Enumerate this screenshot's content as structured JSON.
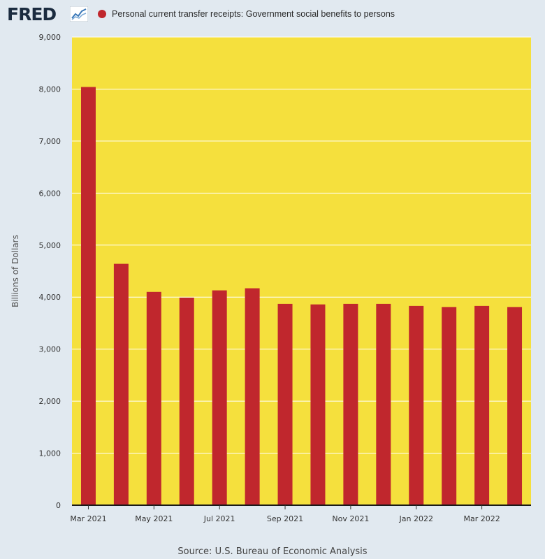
{
  "header": {
    "logo_text": "FRED",
    "logo_icon": "line-chart-icon",
    "legend_label": "Personal current transfer receipts: Government social benefits to persons"
  },
  "colors": {
    "plot_background": "#f5e03d",
    "bar": "#c0272d",
    "page_background": "#e1e9f0",
    "grid": "#ffffff"
  },
  "chart_data": {
    "type": "bar",
    "title": "Personal current transfer receipts: Government social benefits to persons",
    "xlabel": "",
    "ylabel": "Billions of Dollars",
    "ylim": [
      0,
      9000
    ],
    "yticks": [
      0,
      1000,
      2000,
      3000,
      4000,
      5000,
      6000,
      7000,
      8000,
      9000
    ],
    "ytick_labels": [
      "0",
      "1,000",
      "2,000",
      "3,000",
      "4,000",
      "5,000",
      "6,000",
      "7,000",
      "8,000",
      "9,000"
    ],
    "categories": [
      "Mar 2021",
      "Apr 2021",
      "May 2021",
      "Jun 2021",
      "Jul 2021",
      "Aug 2021",
      "Sep 2021",
      "Oct 2021",
      "Nov 2021",
      "Dec 2021",
      "Jan 2022",
      "Feb 2022",
      "Mar 2022",
      "Apr 2022"
    ],
    "xtick_labels": [
      "Mar 2021",
      "May 2021",
      "Jul 2021",
      "Sep 2021",
      "Nov 2021",
      "Jan 2022",
      "Mar 2022"
    ],
    "series": [
      {
        "name": "Personal current transfer receipts: Government social benefits to persons",
        "values": [
          8040,
          4640,
          4100,
          3990,
          4130,
          4170,
          3870,
          3860,
          3870,
          3870,
          3830,
          3810,
          3830,
          3810
        ]
      }
    ],
    "grid": true,
    "legend": "top-left"
  },
  "footer": {
    "source": "Source: U.S. Bureau of Economic Analysis"
  }
}
